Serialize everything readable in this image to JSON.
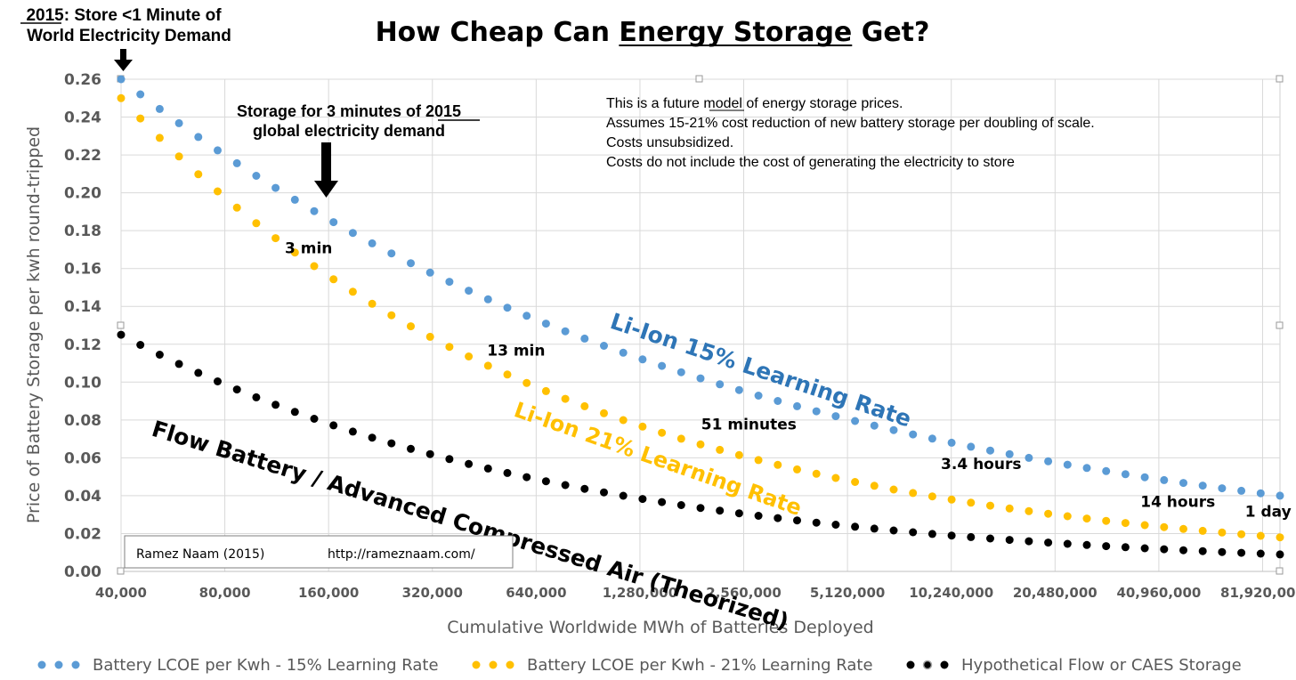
{
  "chart_data": {
    "type": "scatter",
    "title": "How Cheap Can Energy Storage Get?",
    "xlabel": "Cumulative Worldwide MWh of Batteries Deployed",
    "ylabel": "Price of Battery Storage per kwh round-tripped",
    "x_scale": "log2",
    "xlim": [
      40000,
      92000000
    ],
    "ylim": [
      0,
      0.26
    ],
    "x_ticks": [
      "40,000",
      "80,000",
      "160,000",
      "320,000",
      "640,000",
      "1,280,000",
      "2,560,000",
      "5,120,000",
      "10,240,000",
      "20,480,000",
      "40,960,000",
      "81,920,000"
    ],
    "y_ticks": [
      "0.00",
      "0.02",
      "0.04",
      "0.06",
      "0.08",
      "0.10",
      "0.12",
      "0.14",
      "0.16",
      "0.18",
      "0.20",
      "0.22",
      "0.24",
      "0.26"
    ],
    "grid": true,
    "legend_position": "bottom",
    "series": [
      {
        "name": "Battery LCOE per Kwh - 15% Learning Rate",
        "color": "#5b9bd5",
        "start": [
          40000,
          0.26
        ],
        "end": [
          92000000,
          0.04
        ]
      },
      {
        "name": "Battery LCOE per Kwh - 21% Learning Rate",
        "color": "#ffc000",
        "start": [
          40000,
          0.25
        ],
        "end": [
          92000000,
          0.018
        ]
      },
      {
        "name": "Hypothetical Flow or CAES Storage",
        "color": "#000000",
        "start": [
          40000,
          0.125
        ],
        "end": [
          92000000,
          0.009
        ]
      }
    ],
    "series_labels": [
      "Li-Ion 15% Learning Rate",
      "Li-Ion 21% Learning Rate",
      "Flow Battery / Advanced Compressed Air (Theorized)"
    ],
    "annotations": [
      {
        "text": "3 min",
        "x": 140000,
        "y": 0.168
      },
      {
        "text": "13 min",
        "x": 560000,
        "y": 0.114
      },
      {
        "text": "51 minutes",
        "x": 2650000,
        "y": 0.075
      },
      {
        "text": "3.4 hours",
        "x": 12500000,
        "y": 0.054
      },
      {
        "text": "14 hours",
        "x": 46500000,
        "y": 0.034
      },
      {
        "text": "1 day",
        "x": 85000000,
        "y": 0.029
      }
    ],
    "callout_top_left": {
      "lines": [
        "2015: Store <1 Minute of",
        "World Electricity Demand"
      ],
      "underlined": "2015:"
    },
    "callout_storage": {
      "lines": [
        "Storage for 3 minutes of 2015",
        "global electricity demand"
      ],
      "underlined": "2015"
    },
    "notes": [
      "This is a future model of energy storage prices.",
      "Assumes 15-21% cost reduction of new battery storage per doubling of scale.",
      "Costs unsubsidized.",
      "Costs do not include the cost of generating the electricity to store"
    ],
    "credit": {
      "author": "Ramez Naam (2015)",
      "url": "http://rameznaam.com/"
    }
  }
}
